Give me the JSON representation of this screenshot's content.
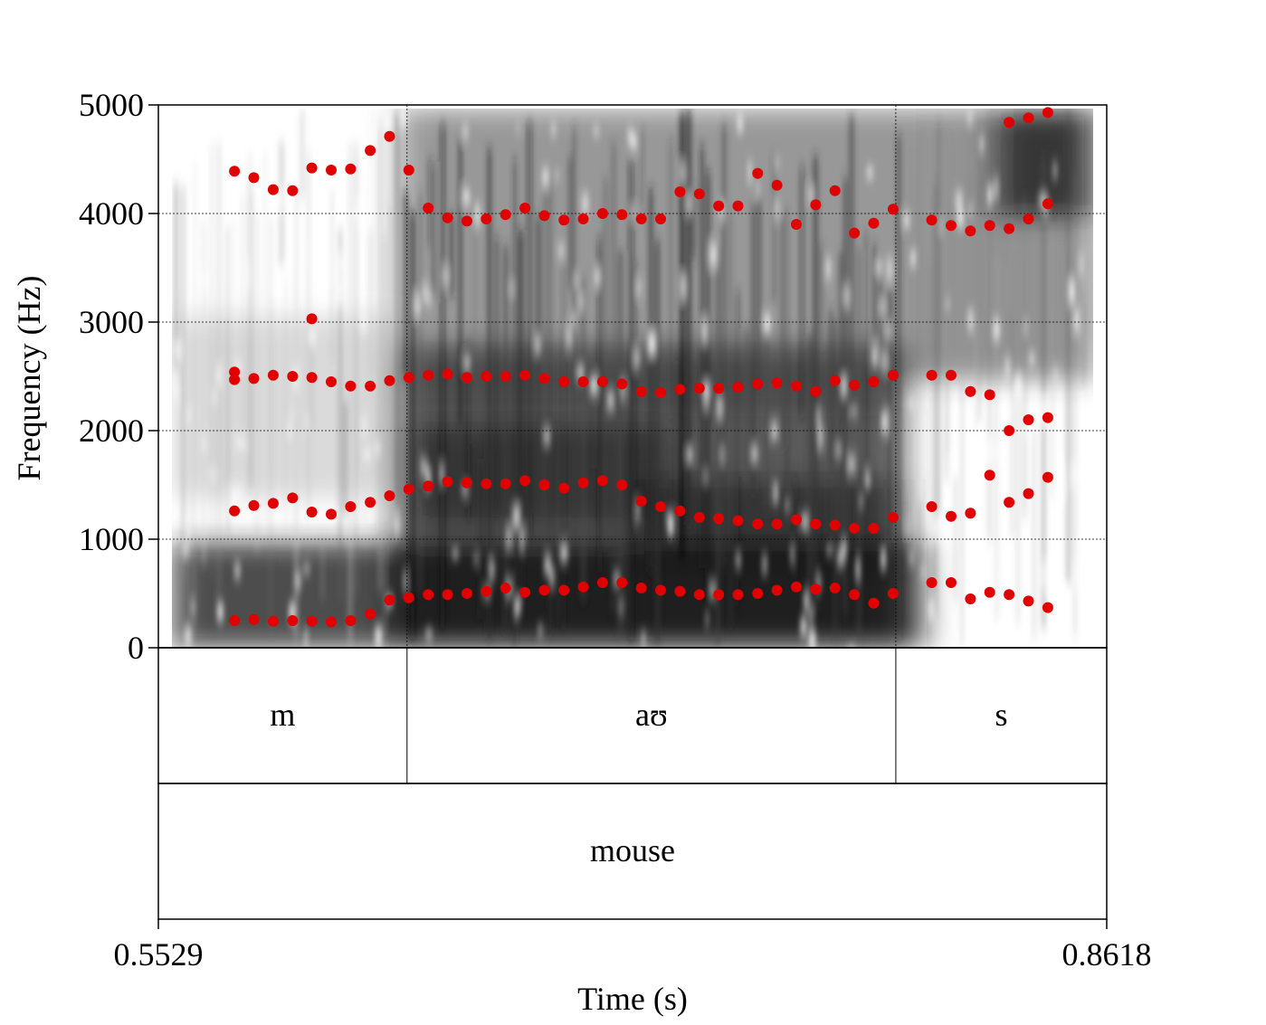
{
  "chart_data": {
    "type": "scatter",
    "subtype": "spectrogram-with-formant-tracks",
    "title": "",
    "xlabel": "Time (s)",
    "ylabel": "Frequency (Hz)",
    "xlim": [
      0.5529,
      0.8618
    ],
    "ylim": [
      0,
      5000
    ],
    "x_tick_labels": [
      "0.5529",
      "0.8618"
    ],
    "y_ticks": [
      0,
      1000,
      2000,
      3000,
      4000,
      5000
    ],
    "y_tick_labels": [
      "0",
      "1000",
      "2000",
      "3000",
      "4000",
      "5000"
    ],
    "grid": "horizontal dotted at 1000 Hz steps; vertical dotted at segment boundaries",
    "marker_color": "#e00000",
    "segment_boundaries": [
      0.6339,
      0.7931
    ],
    "tiers": [
      {
        "name": "phones",
        "intervals": [
          {
            "label": "m",
            "start": 0.5529,
            "end": 0.6339
          },
          {
            "label": "aʊ",
            "start": 0.6339,
            "end": 0.7931
          },
          {
            "label": "s",
            "start": 0.7931,
            "end": 0.8618
          }
        ]
      },
      {
        "name": "words",
        "intervals": [
          {
            "label": "mouse",
            "start": 0.5529,
            "end": 0.8618
          }
        ]
      }
    ],
    "series": [
      {
        "values": [
          [
            0.5777,
            250
          ],
          [
            0.584,
            260
          ],
          [
            0.5903,
            245
          ],
          [
            0.5966,
            250
          ],
          [
            0.6029,
            245
          ],
          [
            0.6092,
            240
          ],
          [
            0.6155,
            250
          ],
          [
            0.6219,
            310
          ],
          [
            0.6282,
            440
          ],
          [
            0.6345,
            460
          ],
          [
            0.6408,
            490
          ],
          [
            0.6471,
            490
          ],
          [
            0.6534,
            500
          ],
          [
            0.6597,
            520
          ],
          [
            0.666,
            550
          ],
          [
            0.6723,
            510
          ],
          [
            0.6786,
            530
          ],
          [
            0.685,
            530
          ],
          [
            0.6913,
            560
          ],
          [
            0.6976,
            600
          ],
          [
            0.7039,
            600
          ],
          [
            0.7102,
            550
          ],
          [
            0.7165,
            530
          ],
          [
            0.7228,
            520
          ],
          [
            0.7291,
            490
          ],
          [
            0.7354,
            490
          ],
          [
            0.7417,
            490
          ],
          [
            0.7481,
            500
          ],
          [
            0.7544,
            530
          ],
          [
            0.7607,
            560
          ],
          [
            0.767,
            540
          ],
          [
            0.7733,
            550
          ],
          [
            0.7796,
            490
          ],
          [
            0.7859,
            410
          ],
          [
            0.7922,
            500
          ],
          [
            0.8048,
            600
          ],
          [
            0.8111,
            600
          ],
          [
            0.8174,
            450
          ],
          [
            0.8237,
            510
          ],
          [
            0.83,
            490
          ],
          [
            0.8363,
            430
          ],
          [
            0.8426,
            370
          ]
        ]
      },
      {
        "values": [
          [
            0.5777,
            1260
          ],
          [
            0.584,
            1310
          ],
          [
            0.5903,
            1330
          ],
          [
            0.5966,
            1380
          ],
          [
            0.6029,
            1250
          ],
          [
            0.6092,
            1230
          ],
          [
            0.6155,
            1300
          ],
          [
            0.6219,
            1340
          ],
          [
            0.6282,
            1400
          ],
          [
            0.6345,
            1460
          ],
          [
            0.6408,
            1490
          ],
          [
            0.6471,
            1530
          ],
          [
            0.6534,
            1520
          ],
          [
            0.6597,
            1510
          ],
          [
            0.666,
            1510
          ],
          [
            0.6723,
            1540
          ],
          [
            0.6786,
            1500
          ],
          [
            0.685,
            1470
          ],
          [
            0.6913,
            1520
          ],
          [
            0.6976,
            1540
          ],
          [
            0.7039,
            1500
          ],
          [
            0.7102,
            1350
          ],
          [
            0.7165,
            1300
          ],
          [
            0.7228,
            1260
          ],
          [
            0.7291,
            1200
          ],
          [
            0.7354,
            1190
          ],
          [
            0.7417,
            1170
          ],
          [
            0.7481,
            1140
          ],
          [
            0.7544,
            1140
          ],
          [
            0.7607,
            1180
          ],
          [
            0.767,
            1140
          ],
          [
            0.7733,
            1130
          ],
          [
            0.7796,
            1100
          ],
          [
            0.7859,
            1100
          ],
          [
            0.7922,
            1200
          ],
          [
            0.8048,
            1300
          ],
          [
            0.8111,
            1210
          ],
          [
            0.8174,
            1240
          ],
          [
            0.8237,
            1590
          ],
          [
            0.83,
            1340
          ],
          [
            0.8363,
            1420
          ],
          [
            0.8426,
            1570
          ]
        ]
      },
      {
        "values": [
          [
            0.5777,
            2540
          ],
          [
            0.5777,
            2470
          ],
          [
            0.584,
            2480
          ],
          [
            0.5903,
            2510
          ],
          [
            0.5966,
            2500
          ],
          [
            0.6029,
            2490
          ],
          [
            0.6092,
            2450
          ],
          [
            0.6155,
            2410
          ],
          [
            0.6219,
            2410
          ],
          [
            0.6282,
            2460
          ],
          [
            0.6345,
            2490
          ],
          [
            0.6408,
            2510
          ],
          [
            0.6471,
            2520
          ],
          [
            0.6534,
            2490
          ],
          [
            0.6597,
            2500
          ],
          [
            0.666,
            2500
          ],
          [
            0.6723,
            2510
          ],
          [
            0.6786,
            2480
          ],
          [
            0.685,
            2450
          ],
          [
            0.6913,
            2450
          ],
          [
            0.6976,
            2450
          ],
          [
            0.7039,
            2430
          ],
          [
            0.7102,
            2360
          ],
          [
            0.7165,
            2350
          ],
          [
            0.7228,
            2380
          ],
          [
            0.7291,
            2390
          ],
          [
            0.7354,
            2390
          ],
          [
            0.7417,
            2400
          ],
          [
            0.7481,
            2430
          ],
          [
            0.7544,
            2440
          ],
          [
            0.7607,
            2410
          ],
          [
            0.767,
            2360
          ],
          [
            0.7733,
            2460
          ],
          [
            0.7796,
            2420
          ],
          [
            0.7859,
            2450
          ],
          [
            0.7922,
            2510
          ],
          [
            0.8048,
            2510
          ],
          [
            0.8111,
            2510
          ],
          [
            0.8174,
            2360
          ],
          [
            0.8237,
            2330
          ],
          [
            0.83,
            2000
          ],
          [
            0.8363,
            2100
          ],
          [
            0.8426,
            2120
          ]
        ]
      },
      {
        "values": [
          [
            0.6029,
            3030
          ]
        ]
      },
      {
        "values": [
          [
            0.5777,
            4390
          ],
          [
            0.584,
            4330
          ],
          [
            0.5903,
            4220
          ],
          [
            0.5966,
            4210
          ],
          [
            0.6029,
            4420
          ],
          [
            0.6092,
            4400
          ],
          [
            0.6155,
            4410
          ],
          [
            0.6219,
            4580
          ],
          [
            0.6282,
            4710
          ],
          [
            0.6345,
            4400
          ],
          [
            0.6408,
            4050
          ],
          [
            0.6471,
            3960
          ],
          [
            0.6534,
            3930
          ],
          [
            0.6597,
            3950
          ],
          [
            0.666,
            3990
          ],
          [
            0.6723,
            4050
          ],
          [
            0.6786,
            3980
          ],
          [
            0.685,
            3940
          ],
          [
            0.6913,
            3950
          ],
          [
            0.6976,
            4000
          ],
          [
            0.7039,
            3990
          ],
          [
            0.7102,
            3950
          ],
          [
            0.7165,
            3950
          ],
          [
            0.7228,
            4200
          ],
          [
            0.7291,
            4180
          ],
          [
            0.7354,
            4070
          ],
          [
            0.7417,
            4070
          ],
          [
            0.7481,
            4370
          ],
          [
            0.7544,
            4260
          ],
          [
            0.7607,
            3900
          ],
          [
            0.767,
            4080
          ],
          [
            0.7733,
            4210
          ],
          [
            0.7796,
            3820
          ],
          [
            0.7859,
            3910
          ],
          [
            0.7922,
            4040
          ],
          [
            0.8048,
            3940
          ],
          [
            0.8111,
            3890
          ],
          [
            0.8174,
            3840
          ],
          [
            0.8237,
            3890
          ],
          [
            0.83,
            3860
          ],
          [
            0.8363,
            3950
          ],
          [
            0.8426,
            4090
          ]
        ]
      },
      {
        "values": [
          [
            0.83,
            4840
          ],
          [
            0.8363,
            4880
          ],
          [
            0.8426,
            4930
          ]
        ]
      }
    ]
  }
}
